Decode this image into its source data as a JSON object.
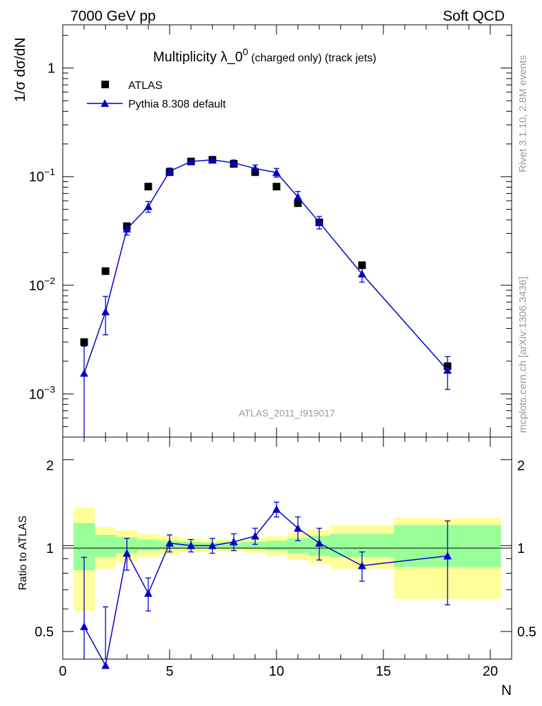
{
  "header": {
    "left": "7000 GeV pp",
    "right": "Soft QCD"
  },
  "main_panel": {
    "title_main": "Multiplicity λ_0",
    "title_sup": "0",
    "title_sub": " (charged only) (track jets)",
    "ylabel": "1/σ dσ/dN",
    "analysis_tag": "ATLAS_2011_I919017"
  },
  "side_labels": {
    "rivet": "Rivet 3.1.10,  2.8M events",
    "mcplots": "mcplots.cern.ch [arXiv:1306.3436]"
  },
  "ratio_panel": {
    "ylabel": "Ratio to ATLAS"
  },
  "legend": {
    "atlas": "ATLAS",
    "pythia": "Pythia 8.308 default"
  },
  "axis_ticks": {
    "x": [
      "0",
      "5",
      "10",
      "15",
      "20"
    ],
    "ratio_y": [
      "0.5",
      "1",
      "2"
    ]
  },
  "chart_data": {
    "type": "scatter",
    "xlabel": "N",
    "ylabel": "1/σ dσ/dN",
    "xlim": [
      0,
      21
    ],
    "ylim": [
      0.0004,
      2.5
    ],
    "yscale": "log",
    "ratio_ylim": [
      0.4,
      2.4
    ],
    "ratio_yscale": "log",
    "series": [
      {
        "name": "ATLAS",
        "color": "#000000",
        "marker": "square",
        "x": [
          1,
          2,
          3,
          4,
          5,
          6,
          7,
          8,
          9,
          10,
          11,
          12,
          14,
          18
        ],
        "y": [
          0.003,
          0.0135,
          0.035,
          0.081,
          0.11,
          0.138,
          0.143,
          0.131,
          0.11,
          0.081,
          0.057,
          0.038,
          0.0153,
          0.0018
        ]
      },
      {
        "name": "Pythia 8.308 default",
        "color": "#0000cc",
        "marker": "triangle",
        "x": [
          1,
          2,
          3,
          4,
          5,
          6,
          7,
          8,
          9,
          10,
          11,
          12,
          14,
          18
        ],
        "y": [
          0.00155,
          0.0057,
          0.033,
          0.053,
          0.112,
          0.138,
          0.143,
          0.134,
          0.119,
          0.109,
          0.065,
          0.038,
          0.0127,
          0.00165
        ],
        "yerr": [
          0.0012,
          0.0022,
          0.004,
          0.006,
          0.008,
          0.007,
          0.007,
          0.008,
          0.009,
          0.01,
          0.008,
          0.005,
          0.002,
          0.00055
        ],
        "ratio": [
          0.52,
          0.38,
          0.94,
          0.68,
          1.02,
          1.0,
          1.0,
          1.03,
          1.08,
          1.34,
          1.15,
          1.02,
          0.85,
          0.92
        ],
        "ratio_err": [
          0.39,
          0.23,
          0.12,
          0.09,
          0.07,
          0.05,
          0.06,
          0.07,
          0.07,
          0.08,
          0.11,
          0.13,
          0.1,
          0.3
        ]
      }
    ],
    "uncertainty_bands": {
      "bins": [
        [
          0.5,
          1.5
        ],
        [
          1.5,
          2.5
        ],
        [
          2.5,
          3.5
        ],
        [
          3.5,
          4.5
        ],
        [
          4.5,
          5.5
        ],
        [
          5.5,
          6.5
        ],
        [
          6.5,
          7.5
        ],
        [
          7.5,
          8.5
        ],
        [
          8.5,
          9.5
        ],
        [
          9.5,
          10.5
        ],
        [
          10.5,
          11.5
        ],
        [
          11.5,
          12.5
        ],
        [
          12.5,
          15.5
        ],
        [
          15.5,
          20.5
        ]
      ],
      "inner": [
        [
          0.82,
          1.2
        ],
        [
          0.91,
          1.09
        ],
        [
          0.94,
          1.07
        ],
        [
          0.96,
          1.05
        ],
        [
          0.97,
          1.04
        ],
        [
          0.975,
          1.03
        ],
        [
          0.975,
          1.025
        ],
        [
          0.975,
          1.025
        ],
        [
          0.97,
          1.03
        ],
        [
          0.96,
          1.04
        ],
        [
          0.94,
          1.06
        ],
        [
          0.92,
          1.08
        ],
        [
          0.91,
          1.1
        ],
        [
          0.84,
          1.18
        ]
      ],
      "outer": [
        [
          0.59,
          1.36
        ],
        [
          0.83,
          1.16
        ],
        [
          0.88,
          1.13
        ],
        [
          0.91,
          1.1
        ],
        [
          0.93,
          1.08
        ],
        [
          0.95,
          1.06
        ],
        [
          0.955,
          1.05
        ],
        [
          0.955,
          1.05
        ],
        [
          0.94,
          1.06
        ],
        [
          0.92,
          1.08
        ],
        [
          0.89,
          1.11
        ],
        [
          0.86,
          1.14
        ],
        [
          0.83,
          1.18
        ],
        [
          0.65,
          1.25
        ]
      ],
      "inner_color": "#99ff99",
      "outer_color": "#ffff99"
    }
  }
}
